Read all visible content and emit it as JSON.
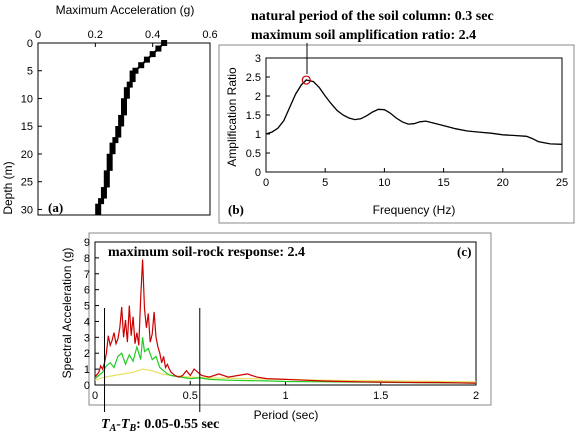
{
  "chart_data": [
    {
      "type": "line",
      "panel_label": "(a)",
      "title": "",
      "xlabel": "Maximum Acceleration (g)",
      "ylabel": "Depth (m)",
      "xlim": [
        0,
        0.6
      ],
      "ylim": [
        0,
        31
      ],
      "x_ticks": [
        "0",
        "0.2",
        "0.4",
        "0.6"
      ],
      "y_ticks": [
        "0",
        "5",
        "10",
        "15",
        "20",
        "25",
        "30"
      ],
      "series": [
        {
          "color": "#000000",
          "marker": "square",
          "points": [
            [
              0.44,
              0
            ],
            [
              0.42,
              1
            ],
            [
              0.4,
              2
            ],
            [
              0.38,
              3
            ],
            [
              0.36,
              4
            ],
            [
              0.34,
              5
            ],
            [
              0.33,
              5.5
            ],
            [
              0.33,
              6.5
            ],
            [
              0.32,
              7.5
            ],
            [
              0.31,
              8.5
            ],
            [
              0.31,
              9.5
            ],
            [
              0.3,
              10.5
            ],
            [
              0.3,
              11.5
            ],
            [
              0.3,
              12.5
            ],
            [
              0.29,
              13.5
            ],
            [
              0.29,
              14.5
            ],
            [
              0.28,
              15.5
            ],
            [
              0.28,
              16.5
            ],
            [
              0.27,
              17.5
            ],
            [
              0.26,
              18.5
            ],
            [
              0.26,
              19.5
            ],
            [
              0.25,
              20.5
            ],
            [
              0.25,
              21.5
            ],
            [
              0.25,
              22.5
            ],
            [
              0.24,
              23.5
            ],
            [
              0.24,
              24.5
            ],
            [
              0.24,
              25.5
            ],
            [
              0.23,
              26.5
            ],
            [
              0.23,
              27.5
            ],
            [
              0.22,
              28.5
            ],
            [
              0.21,
              29.5
            ],
            [
              0.21,
              30.5
            ]
          ]
        }
      ]
    },
    {
      "type": "line",
      "panel_label": "(b)",
      "title": "",
      "xlabel": "Frequency (Hz)",
      "ylabel": "Amplification Ratio",
      "xlim": [
        0,
        25
      ],
      "ylim": [
        0,
        3
      ],
      "x_ticks": [
        "0",
        "5",
        "10",
        "15",
        "20",
        "25"
      ],
      "y_ticks": [
        "0",
        "0.5",
        "1",
        "1.5",
        "2",
        "2.5",
        "3"
      ],
      "annotations": [
        "natural period of the soil column:  0.3 sec",
        "maximum soil amplification ratio: 2.4"
      ],
      "highlight_point": [
        3.4,
        2.42
      ],
      "series": [
        {
          "color": "#000000",
          "points": [
            [
              0,
              1.0
            ],
            [
              0.5,
              1.05
            ],
            [
              1,
              1.15
            ],
            [
              1.5,
              1.35
            ],
            [
              2,
              1.7
            ],
            [
              2.5,
              2.05
            ],
            [
              3,
              2.3
            ],
            [
              3.4,
              2.42
            ],
            [
              4,
              2.38
            ],
            [
              4.5,
              2.22
            ],
            [
              5,
              2.0
            ],
            [
              5.5,
              1.8
            ],
            [
              6,
              1.62
            ],
            [
              6.5,
              1.5
            ],
            [
              7,
              1.42
            ],
            [
              7.5,
              1.38
            ],
            [
              8,
              1.4
            ],
            [
              8.5,
              1.48
            ],
            [
              9,
              1.58
            ],
            [
              9.5,
              1.65
            ],
            [
              10,
              1.64
            ],
            [
              10.5,
              1.55
            ],
            [
              11,
              1.42
            ],
            [
              11.5,
              1.32
            ],
            [
              12,
              1.26
            ],
            [
              12.5,
              1.27
            ],
            [
              13,
              1.32
            ],
            [
              13.5,
              1.34
            ],
            [
              14,
              1.3
            ],
            [
              15,
              1.22
            ],
            [
              16,
              1.14
            ],
            [
              17,
              1.08
            ],
            [
              18,
              1.05
            ],
            [
              19,
              1.02
            ],
            [
              20,
              0.98
            ],
            [
              21,
              0.96
            ],
            [
              22,
              0.94
            ],
            [
              22.5,
              0.88
            ],
            [
              23,
              0.8
            ],
            [
              24,
              0.74
            ],
            [
              25,
              0.73
            ]
          ]
        }
      ]
    },
    {
      "type": "line",
      "panel_label": "(c)",
      "title": "",
      "xlabel": "Period (sec)",
      "ylabel": "Spectral Acceleration (g)",
      "xlim": [
        0,
        2
      ],
      "ylim": [
        0,
        9
      ],
      "x_ticks": [
        "0",
        "0.5",
        "1",
        "1.5",
        "2"
      ],
      "y_ticks": [
        "0",
        "1",
        "2",
        "3",
        "4",
        "5",
        "6",
        "7",
        "8",
        "9"
      ],
      "annotations": [
        "maximum soil-rock response:  2.4"
      ],
      "vertical_markers": [
        0.05,
        0.55
      ],
      "bottom_label": {
        "ta": "T",
        "ta_sub": "A",
        "sep": "-",
        "tb": "T",
        "tb_sub": "B",
        "rest": ":  0.05-0.55 sec"
      },
      "series": [
        {
          "color": "#cc0000",
          "points": [
            [
              0,
              0.5
            ],
            [
              0.02,
              0.8
            ],
            [
              0.03,
              1.2
            ],
            [
              0.04,
              1.0
            ],
            [
              0.05,
              1.4
            ],
            [
              0.06,
              2.0
            ],
            [
              0.07,
              3.1
            ],
            [
              0.08,
              2.5
            ],
            [
              0.09,
              2.8
            ],
            [
              0.1,
              3.3
            ],
            [
              0.11,
              2.6
            ],
            [
              0.12,
              2.9
            ],
            [
              0.13,
              3.6
            ],
            [
              0.14,
              4.9
            ],
            [
              0.15,
              3.0
            ],
            [
              0.16,
              4.1
            ],
            [
              0.17,
              2.7
            ],
            [
              0.18,
              5.0
            ],
            [
              0.19,
              3.1
            ],
            [
              0.2,
              4.3
            ],
            [
              0.21,
              2.6
            ],
            [
              0.22,
              3.3
            ],
            [
              0.23,
              2.5
            ],
            [
              0.24,
              5.5
            ],
            [
              0.25,
              7.9
            ],
            [
              0.26,
              4.8
            ],
            [
              0.27,
              3.6
            ],
            [
              0.28,
              4.5
            ],
            [
              0.29,
              2.7
            ],
            [
              0.3,
              3.2
            ],
            [
              0.31,
              4.6
            ],
            [
              0.32,
              3.0
            ],
            [
              0.33,
              2.4
            ],
            [
              0.34,
              2.0
            ],
            [
              0.35,
              1.4
            ],
            [
              0.36,
              1.8
            ],
            [
              0.37,
              1.1
            ],
            [
              0.38,
              1.3
            ],
            [
              0.39,
              1.0
            ],
            [
              0.4,
              0.8
            ],
            [
              0.42,
              0.6
            ],
            [
              0.44,
              0.5
            ],
            [
              0.46,
              0.6
            ],
            [
              0.48,
              0.9
            ],
            [
              0.5,
              0.6
            ],
            [
              0.52,
              1.0
            ],
            [
              0.54,
              0.8
            ],
            [
              0.56,
              0.6
            ],
            [
              0.6,
              0.5
            ],
            [
              0.65,
              0.7
            ],
            [
              0.7,
              0.5
            ],
            [
              0.75,
              0.6
            ],
            [
              0.8,
              0.7
            ],
            [
              0.85,
              0.5
            ],
            [
              0.9,
              0.4
            ],
            [
              1.0,
              0.35
            ],
            [
              1.1,
              0.3
            ],
            [
              1.2,
              0.25
            ],
            [
              1.3,
              0.22
            ],
            [
              1.4,
              0.2
            ],
            [
              1.5,
              0.18
            ],
            [
              1.6,
              0.17
            ],
            [
              1.7,
              0.16
            ],
            [
              1.8,
              0.16
            ],
            [
              1.9,
              0.14
            ],
            [
              2.0,
              0.12
            ]
          ]
        },
        {
          "color": "#22cc22",
          "points": [
            [
              0,
              0.4
            ],
            [
              0.02,
              0.6
            ],
            [
              0.04,
              0.8
            ],
            [
              0.06,
              1.2
            ],
            [
              0.08,
              1.4
            ],
            [
              0.1,
              1.1
            ],
            [
              0.12,
              1.8
            ],
            [
              0.14,
              2.0
            ],
            [
              0.16,
              1.3
            ],
            [
              0.18,
              1.9
            ],
            [
              0.2,
              1.5
            ],
            [
              0.22,
              2.4
            ],
            [
              0.24,
              1.6
            ],
            [
              0.25,
              3.0
            ],
            [
              0.26,
              2.1
            ],
            [
              0.28,
              2.3
            ],
            [
              0.3,
              1.6
            ],
            [
              0.32,
              1.8
            ],
            [
              0.34,
              1.1
            ],
            [
              0.36,
              0.9
            ],
            [
              0.38,
              0.7
            ],
            [
              0.4,
              0.6
            ],
            [
              0.45,
              0.5
            ],
            [
              0.5,
              0.4
            ],
            [
              0.55,
              0.45
            ],
            [
              0.6,
              0.35
            ],
            [
              0.7,
              0.3
            ],
            [
              0.8,
              0.28
            ],
            [
              0.9,
              0.26
            ],
            [
              1.0,
              0.22
            ],
            [
              1.2,
              0.2
            ],
            [
              1.4,
              0.18
            ],
            [
              1.6,
              0.16
            ],
            [
              1.8,
              0.14
            ],
            [
              2.0,
              0.12
            ]
          ]
        },
        {
          "color": "#e8e060",
          "points": [
            [
              0,
              0.3
            ],
            [
              0.05,
              0.5
            ],
            [
              0.1,
              0.6
            ],
            [
              0.15,
              0.7
            ],
            [
              0.2,
              0.8
            ],
            [
              0.25,
              1.0
            ],
            [
              0.3,
              0.9
            ],
            [
              0.35,
              0.7
            ],
            [
              0.4,
              0.6
            ],
            [
              0.5,
              0.5
            ],
            [
              0.6,
              0.45
            ],
            [
              0.8,
              0.4
            ],
            [
              1.0,
              0.35
            ],
            [
              1.2,
              0.3
            ],
            [
              1.4,
              0.27
            ],
            [
              1.6,
              0.25
            ],
            [
              1.8,
              0.22
            ],
            [
              2.0,
              0.2
            ]
          ]
        }
      ]
    }
  ]
}
